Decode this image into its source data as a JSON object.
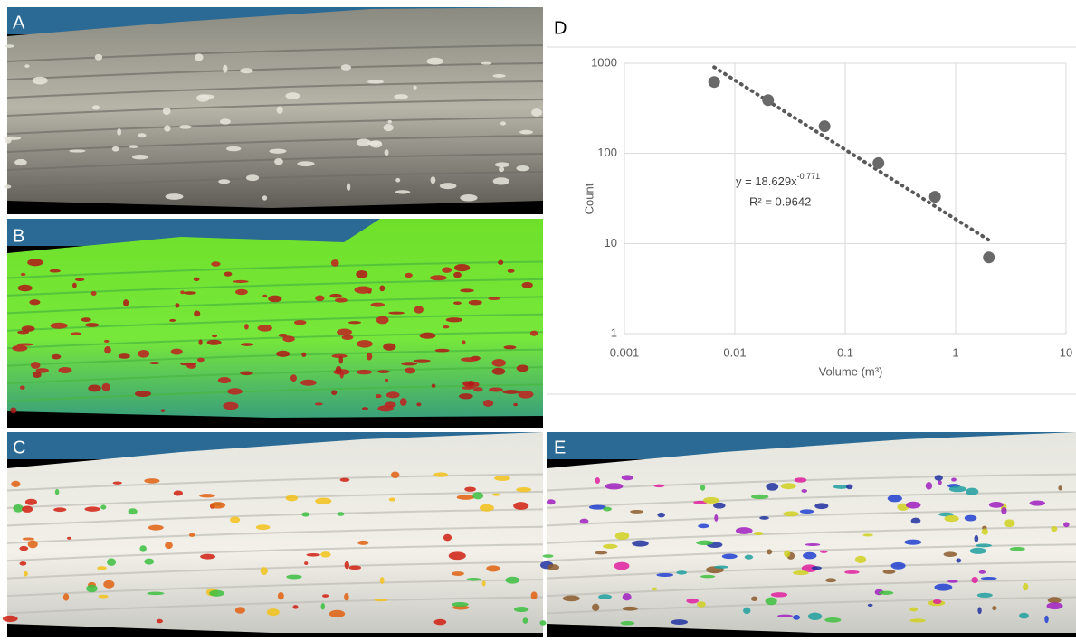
{
  "panels": {
    "a": "A",
    "b": "B",
    "c": "C",
    "d": "D",
    "e": "E"
  },
  "chart_data": {
    "type": "scatter",
    "x_label": "Volume (m³)",
    "y_label": "Count",
    "annotations": {
      "equation": "y = 18.629x",
      "exponent": "-0.771",
      "r_squared": "R² = 0.9642"
    },
    "xscale": "log",
    "yscale": "log",
    "grid": true,
    "xlim": [
      0.001,
      10
    ],
    "ylim": [
      1,
      1000
    ],
    "xticks": [
      0.001,
      0.01,
      0.1,
      1,
      10
    ],
    "yticks": [
      1,
      10,
      100,
      1000
    ],
    "series": [
      {
        "color": "#696969",
        "x": [
          0.0065,
          0.02,
          0.065,
          0.2,
          0.65,
          2.0
        ],
        "values": [
          620,
          390,
          200,
          78,
          33,
          7
        ]
      }
    ],
    "trendline": {
      "color": "#595959",
      "x": [
        0.0065,
        2.05
      ],
      "values": [
        905,
        10.7
      ]
    }
  }
}
